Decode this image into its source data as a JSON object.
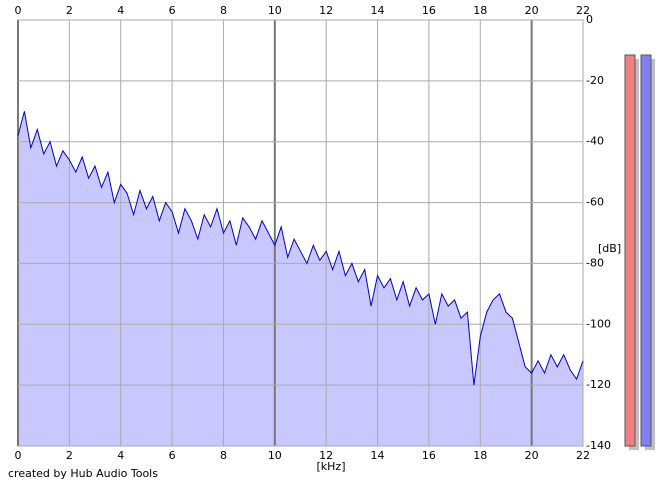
{
  "chart_data": {
    "type": "area",
    "x_label": "[kHz]",
    "y_label": "[dB]",
    "footer": "created by Hub Audio Tools",
    "x": [
      0,
      0.25,
      0.5,
      0.75,
      1,
      1.25,
      1.5,
      1.75,
      2,
      2.25,
      2.5,
      2.75,
      3,
      3.25,
      3.5,
      3.75,
      4,
      4.25,
      4.5,
      4.75,
      5,
      5.25,
      5.5,
      5.75,
      6,
      6.25,
      6.5,
      6.75,
      7,
      7.25,
      7.5,
      7.75,
      8,
      8.25,
      8.5,
      8.75,
      9,
      9.25,
      9.5,
      9.75,
      10,
      10.25,
      10.5,
      10.75,
      11,
      11.25,
      11.5,
      11.75,
      12,
      12.25,
      12.5,
      12.75,
      13,
      13.25,
      13.5,
      13.75,
      14,
      14.25,
      14.5,
      14.75,
      15,
      15.25,
      15.5,
      15.75,
      16,
      16.25,
      16.5,
      16.75,
      17,
      17.25,
      17.5,
      17.75,
      18,
      18.25,
      18.5,
      18.75,
      19,
      19.25,
      19.5,
      19.75,
      20,
      20.25,
      20.5,
      20.75,
      21,
      21.25,
      21.5,
      21.75,
      22
    ],
    "series": [
      {
        "color": "#0000cc",
        "fill": "#c8c8ff",
        "values": [
          -38,
          -30,
          -42,
          -36,
          -44,
          -40,
          -48,
          -43,
          -46,
          -50,
          -45,
          -52,
          -48,
          -55,
          -50,
          -60,
          -54,
          -57,
          -64,
          -56,
          -62,
          -58,
          -66,
          -60,
          -63,
          -70,
          -62,
          -66,
          -72,
          -64,
          -68,
          -62,
          -70,
          -66,
          -74,
          -65,
          -68,
          -72,
          -66,
          -70,
          -74,
          -68,
          -78,
          -72,
          -76,
          -80,
          -74,
          -79,
          -76,
          -82,
          -76,
          -84,
          -80,
          -86,
          -82,
          -94,
          -84,
          -88,
          -85,
          -92,
          -86,
          -94,
          -88,
          -92,
          -90,
          -100,
          -90,
          -94,
          -92,
          -98,
          -96,
          -120,
          -104,
          -96,
          -92,
          -90,
          -96,
          -98,
          -106,
          -114,
          -116,
          -112,
          -116,
          -110,
          -114,
          -110,
          -115,
          -118,
          -112
        ]
      }
    ],
    "xlim": [
      0,
      22
    ],
    "ylim": [
      -140,
      0
    ],
    "xticks": [
      0,
      2,
      4,
      6,
      8,
      10,
      12,
      14,
      16,
      18,
      20,
      22
    ],
    "yticks": [
      0,
      -20,
      -40,
      -60,
      -80,
      -100,
      -120,
      -140
    ],
    "grid": true
  }
}
